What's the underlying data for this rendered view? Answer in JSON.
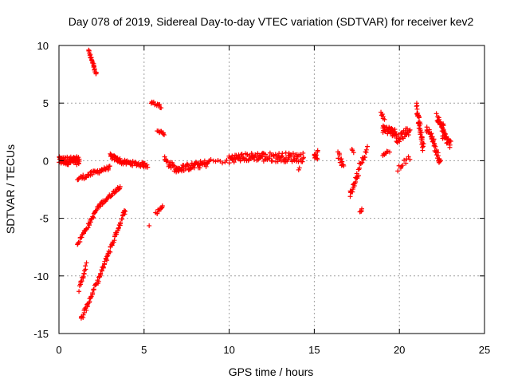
{
  "chart_data": {
    "type": "scatter",
    "title": "Day 078 of 2019, Sidereal Day-to-day VTEC variation (SDTVAR) for receiver kev2",
    "xlabel": "GPS time / hours",
    "ylabel": "SDTVAR / TECUs",
    "xlim": [
      0,
      25
    ],
    "ylim": [
      -15,
      10
    ],
    "xticks": [
      0,
      5,
      10,
      15,
      20,
      25
    ],
    "yticks": [
      -15,
      -10,
      -5,
      0,
      5,
      10
    ],
    "grid": true,
    "marker": "+",
    "colors": {
      "points": "#ff0000",
      "grid": "#a0a0a0",
      "axis": "#000000"
    },
    "segments": [
      {
        "x": [
          0.0,
          1.2
        ],
        "y": [
          0.0,
          0.0
        ],
        "spread": 0.35,
        "n": 70
      },
      {
        "x": [
          1.1,
          2.5
        ],
        "y": [
          -1.6,
          -0.8
        ],
        "spread": 0.2,
        "n": 30
      },
      {
        "x": [
          2.5,
          3.0
        ],
        "y": [
          -0.8,
          -0.6
        ],
        "spread": 0.15,
        "n": 12
      },
      {
        "x": [
          3.0,
          3.6
        ],
        "y": [
          0.4,
          0.0
        ],
        "spread": 0.2,
        "n": 25
      },
      {
        "x": [
          3.6,
          5.2
        ],
        "y": [
          -0.1,
          -0.4
        ],
        "spread": 0.2,
        "n": 45
      },
      {
        "x": [
          1.1,
          1.8
        ],
        "y": [
          -7.2,
          -5.4
        ],
        "spread": 0.15,
        "n": 20
      },
      {
        "x": [
          1.8,
          2.3
        ],
        "y": [
          -5.4,
          -4.0
        ],
        "spread": 0.15,
        "n": 15
      },
      {
        "x": [
          2.3,
          3.6
        ],
        "y": [
          -4.0,
          -2.2
        ],
        "spread": 0.15,
        "n": 35
      },
      {
        "x": [
          1.2,
          1.6
        ],
        "y": [
          -11.2,
          -9.0
        ],
        "spread": 0.2,
        "n": 15
      },
      {
        "x": [
          1.3,
          2.4
        ],
        "y": [
          -13.8,
          -10.0
        ],
        "spread": 0.2,
        "n": 35
      },
      {
        "x": [
          2.4,
          3.9
        ],
        "y": [
          -10.0,
          -4.2
        ],
        "spread": 0.2,
        "n": 50
      },
      {
        "x": [
          1.75,
          2.2
        ],
        "y": [
          9.6,
          7.5
        ],
        "spread": 0.15,
        "n": 25
      },
      {
        "x": [
          5.4,
          6.0
        ],
        "y": [
          5.1,
          4.7
        ],
        "spread": 0.15,
        "n": 12
      },
      {
        "x": [
          5.8,
          6.2
        ],
        "y": [
          2.7,
          2.3
        ],
        "spread": 0.15,
        "n": 10
      },
      {
        "x": [
          5.7,
          6.1
        ],
        "y": [
          -4.6,
          -3.9
        ],
        "spread": 0.15,
        "n": 10
      },
      {
        "x": [
          5.3,
          5.3
        ],
        "y": [
          -5.6,
          -5.6
        ],
        "spread": 0.05,
        "n": 1
      },
      {
        "x": [
          6.2,
          7.0
        ],
        "y": [
          0.1,
          -0.9
        ],
        "spread": 0.3,
        "n": 25
      },
      {
        "x": [
          7.0,
          8.8
        ],
        "y": [
          -0.7,
          -0.2
        ],
        "spread": 0.3,
        "n": 55
      },
      {
        "x": [
          8.8,
          10.0
        ],
        "y": [
          0.0,
          -0.1
        ],
        "spread": 0.15,
        "n": 10
      },
      {
        "x": [
          10.0,
          12.0
        ],
        "y": [
          0.2,
          0.4
        ],
        "spread": 0.35,
        "n": 60
      },
      {
        "x": [
          12.0,
          14.4
        ],
        "y": [
          0.3,
          0.3
        ],
        "spread": 0.4,
        "n": 70
      },
      {
        "x": [
          14.1,
          14.1
        ],
        "y": [
          -0.7,
          -0.7
        ],
        "spread": 0.1,
        "n": 2
      },
      {
        "x": [
          15.0,
          15.2
        ],
        "y": [
          0.5,
          0.5
        ],
        "spread": 0.4,
        "n": 12
      },
      {
        "x": [
          16.4,
          16.7
        ],
        "y": [
          0.6,
          -0.6
        ],
        "spread": 0.3,
        "n": 12
      },
      {
        "x": [
          17.1,
          17.6
        ],
        "y": [
          -3.0,
          -1.0
        ],
        "spread": 0.3,
        "n": 20
      },
      {
        "x": [
          17.6,
          18.1
        ],
        "y": [
          -0.5,
          1.0
        ],
        "spread": 0.3,
        "n": 15
      },
      {
        "x": [
          17.2,
          17.3
        ],
        "y": [
          0.9,
          0.9
        ],
        "spread": 0.2,
        "n": 3
      },
      {
        "x": [
          17.7,
          17.8
        ],
        "y": [
          -4.5,
          -4.3
        ],
        "spread": 0.15,
        "n": 5
      },
      {
        "x": [
          18.9,
          19.1
        ],
        "y": [
          4.1,
          3.7
        ],
        "spread": 0.2,
        "n": 6
      },
      {
        "x": [
          19.0,
          19.8
        ],
        "y": [
          2.8,
          2.4
        ],
        "spread": 0.35,
        "n": 40
      },
      {
        "x": [
          19.0,
          19.4
        ],
        "y": [
          0.6,
          0.8
        ],
        "spread": 0.15,
        "n": 8
      },
      {
        "x": [
          19.8,
          20.6
        ],
        "y": [
          1.8,
          2.7
        ],
        "spread": 0.4,
        "n": 30
      },
      {
        "x": [
          19.9,
          20.6
        ],
        "y": [
          -0.7,
          0.3
        ],
        "spread": 0.2,
        "n": 10
      },
      {
        "x": [
          21.0,
          21.4
        ],
        "y": [
          4.6,
          1.2
        ],
        "spread": 0.4,
        "n": 40
      },
      {
        "x": [
          21.6,
          22.0
        ],
        "y": [
          2.8,
          1.8
        ],
        "spread": 0.3,
        "n": 20
      },
      {
        "x": [
          22.0,
          22.4
        ],
        "y": [
          1.5,
          -0.2
        ],
        "spread": 0.3,
        "n": 20
      },
      {
        "x": [
          22.2,
          22.6
        ],
        "y": [
          3.8,
          2.8
        ],
        "spread": 0.3,
        "n": 25
      },
      {
        "x": [
          22.5,
          23.0
        ],
        "y": [
          2.4,
          1.4
        ],
        "spread": 0.4,
        "n": 30
      }
    ]
  }
}
